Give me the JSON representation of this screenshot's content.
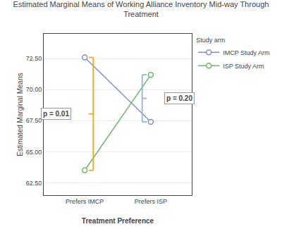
{
  "chart_data": {
    "type": "line",
    "title": "Estimated Marginal Means of Working Alliance Inventory Mid-way Through\nTreatment",
    "xlabel": "Treatment Preference",
    "ylabel": "Estimated Marginal Means",
    "categories": [
      "Prefers IMCP",
      "Prefers ISP"
    ],
    "series": [
      {
        "name": "IMCP Study Arm",
        "color": "#8090c8",
        "values": [
          72.6,
          67.4
        ]
      },
      {
        "name": "ISP Study Arm",
        "color": "#6ab86a",
        "values": [
          63.5,
          71.2
        ]
      }
    ],
    "ylim": [
      61.5,
      74.5
    ],
    "yticks": [
      {
        "value": 62.5,
        "label": "62.50"
      },
      {
        "value": 65.0,
        "label": "65.00"
      },
      {
        "value": 67.5,
        "label": "67.50"
      },
      {
        "value": 70.0,
        "label": "70.00"
      },
      {
        "value": 72.5,
        "label": "72.50"
      }
    ],
    "annotations": [
      {
        "text": "p = 0.01",
        "color": "#f5a623"
      },
      {
        "text": "p = 0.20",
        "color": "#90b8d8"
      }
    ],
    "legend_title": "Study arm",
    "legend": "right",
    "marker": "circle",
    "grid": true
  }
}
